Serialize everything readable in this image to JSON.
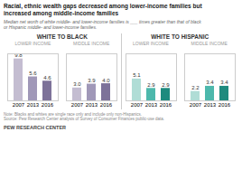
{
  "title": "Racial, ethnic wealth gaps decreased among lower-income families but\nincreased among middle-income families",
  "subtitle": "Median net worth of white middle- and lower-income families is ___ times greater than that of black\nor Hispanic middle- and lower-income families.",
  "annotations": [
    "WHITE TO BLACK",
    "WHITE TO HISPANIC",
    "Note: Blacks and whites are single race only and include only non-Hispanics.\nSource: Pew Research Center analysis of Survey of Consumer Finances public-use data.",
    "PEW RESEARCH CENTER"
  ],
  "chart_data": [
    {
      "type": "bar",
      "title": "LOWER INCOME",
      "categories": [
        "2007",
        "2013",
        "2016"
      ],
      "values": [
        9.8,
        5.6,
        4.6
      ],
      "value_labels": [
        "9.8",
        "5.6",
        "4.6"
      ],
      "colors": [
        "#c4bdd1",
        "#a098b8",
        "#7d7299"
      ],
      "ylim": [
        0,
        11
      ],
      "grid": false,
      "data_labels": true,
      "tick_labels": "x"
    },
    {
      "type": "bar",
      "title": "MIDDLE INCOME",
      "categories": [
        "2007",
        "2013",
        "2016"
      ],
      "values": [
        3.0,
        3.9,
        4.0
      ],
      "value_labels": [
        "3.0",
        "3.9",
        "4.0"
      ],
      "colors": [
        "#c4bdd1",
        "#a098b8",
        "#7d7299"
      ],
      "ylim": [
        0,
        11
      ],
      "grid": false,
      "data_labels": true,
      "tick_labels": "x"
    },
    {
      "type": "bar",
      "title": "LOWER INCOME",
      "categories": [
        "2007",
        "2013",
        "2016"
      ],
      "values": [
        5.1,
        2.9,
        2.9
      ],
      "value_labels": [
        "5.1",
        "2.9",
        "2.9"
      ],
      "colors": [
        "#b0ddd6",
        "#4db8ac",
        "#1e8a7e"
      ],
      "ylim": [
        0,
        11
      ],
      "grid": false,
      "data_labels": true,
      "tick_labels": "x"
    },
    {
      "type": "bar",
      "title": "MIDDLE INCOME",
      "categories": [
        "2007",
        "2013",
        "2016"
      ],
      "values": [
        2.2,
        3.4,
        3.4
      ],
      "value_labels": [
        "2.2",
        "3.4",
        "3.4"
      ],
      "colors": [
        "#b0ddd6",
        "#4db8ac",
        "#1e8a7e"
      ],
      "ylim": [
        0,
        11
      ],
      "grid": false,
      "data_labels": true,
      "tick_labels": "x"
    }
  ]
}
